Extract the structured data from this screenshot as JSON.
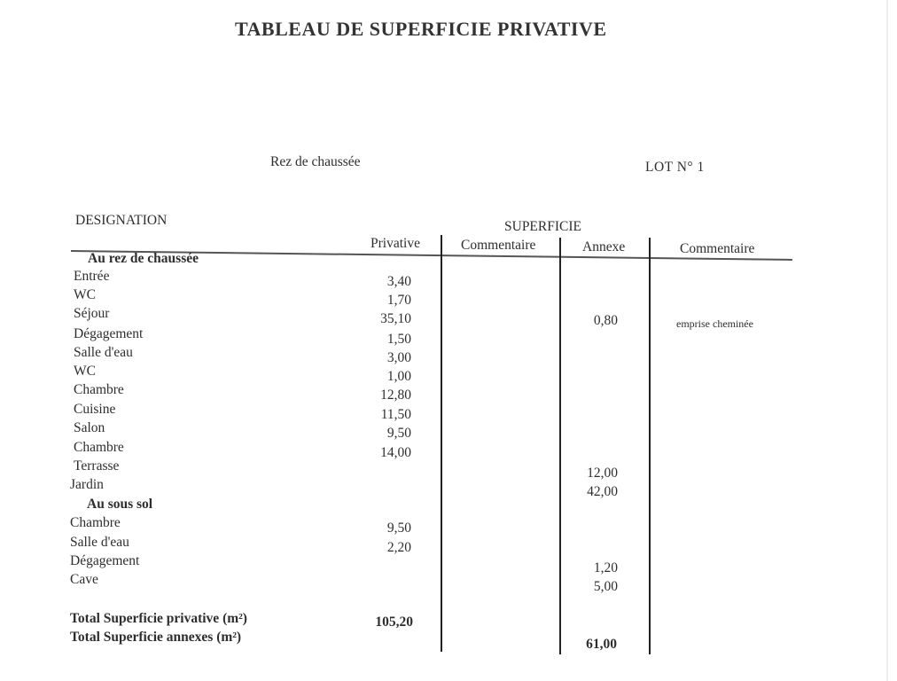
{
  "document": {
    "title": "TABLEAU DE SUPERFICIE PRIVATIVE",
    "level": "Rez de chaussée",
    "lot": "LOT N°  1"
  },
  "table": {
    "designation_header": "DESIGNATION",
    "superficie_header": "SUPERFICIE",
    "columns": {
      "privative": "Privative",
      "commentaire1": "Commentaire",
      "annexe": "Annexe",
      "commentaire2": "Commentaire"
    },
    "rows": [
      {
        "label": "Au rez de chaussée",
        "section": true
      },
      {
        "label": "Entrée",
        "privative": "3,40"
      },
      {
        "label": "WC",
        "privative": "1,70"
      },
      {
        "label": "Séjour",
        "privative": "35,10",
        "annexe": "0,80",
        "commentaire": "emprise cheminée"
      },
      {
        "label": "Dégagement",
        "privative": "1,50"
      },
      {
        "label": "Salle d'eau",
        "privative": "3,00"
      },
      {
        "label": "WC",
        "privative": "1,00"
      },
      {
        "label": "Chambre",
        "privative": "12,80"
      },
      {
        "label": "Cuisine",
        "privative": "11,50"
      },
      {
        "label": "Salon",
        "privative": "9,50"
      },
      {
        "label": "Chambre",
        "privative": "14,00"
      },
      {
        "label": "Terrasse",
        "annexe": "12,00"
      },
      {
        "label": "Jardin",
        "annexe": "42,00"
      },
      {
        "label": "Au sous sol",
        "section": true
      },
      {
        "label": "Chambre",
        "privative": "9,50"
      },
      {
        "label": "Salle d'eau",
        "privative": "2,20"
      },
      {
        "label": "Dégagement",
        "annexe": "1,20"
      },
      {
        "label": "Cave",
        "annexe": "5,00"
      }
    ],
    "totals": {
      "privative_label": "Total Superficie privative (m²)",
      "privative_value": "105,20",
      "annexes_label": "Total Superficie annexes (m²)",
      "annexes_value": "61,00"
    }
  }
}
